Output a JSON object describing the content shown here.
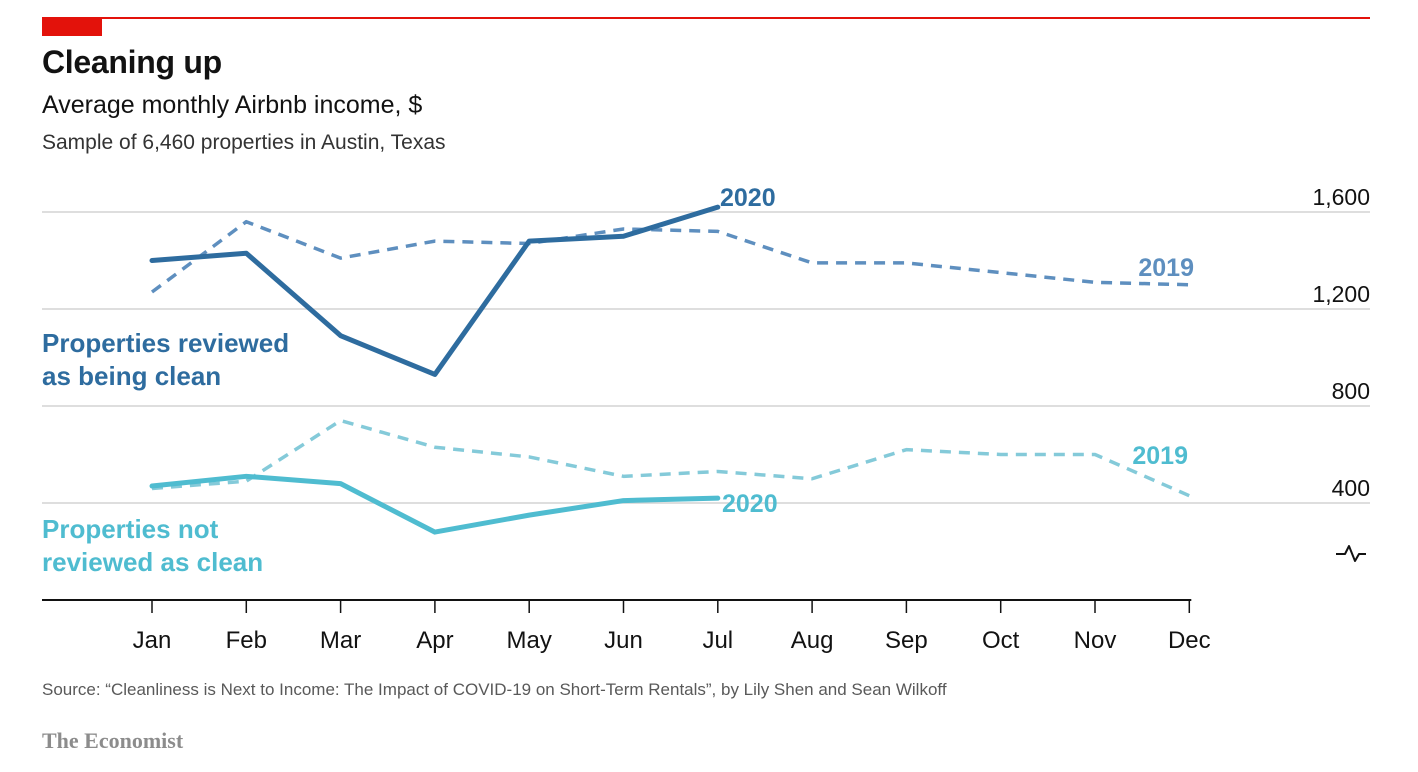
{
  "header": {
    "title": "Cleaning up",
    "subtitle": "Average monthly Airbnb income, $",
    "note": "Sample of 6,460 properties in Austin, Texas"
  },
  "footer": {
    "source": "Source: “Cleanliness is Next to Income: The Impact of COVID-19 on Short-Term Rentals”, by Lily Shen and Sean Wilkoff",
    "brand": "The Economist"
  },
  "colors": {
    "accent_red": "#e3120b",
    "dark_blue": "#2e6c9f",
    "dark_blue_dashed": "#5e8fbf",
    "light_blue": "#4fbcd0",
    "light_blue_dashed": "#84cad9",
    "grid": "#d4d4d4",
    "axis": "#121212"
  },
  "chart_data": {
    "type": "line",
    "categories": [
      "Jan",
      "Feb",
      "Mar",
      "Apr",
      "May",
      "Jun",
      "Jul",
      "Aug",
      "Sep",
      "Oct",
      "Nov",
      "Dec"
    ],
    "ylim": [
      0,
      1600
    ],
    "yticks": [
      400,
      800,
      1200,
      1600
    ],
    "ytick_labels": [
      "400",
      "800",
      "1,200",
      "1,600"
    ],
    "grid": true,
    "groups": [
      {
        "label": "Properties reviewed as being clean",
        "label_lines": [
          "Properties reviewed",
          "as being clean"
        ],
        "series": [
          {
            "name": "2020",
            "style": "solid",
            "values": [
              1400,
              1430,
              1090,
              930,
              1480,
              1500,
              1620
            ]
          },
          {
            "name": "2019",
            "style": "dashed",
            "values": [
              1270,
              1560,
              1410,
              1480,
              1470,
              1530,
              1520,
              1390,
              1390,
              1350,
              1310,
              1300
            ]
          }
        ]
      },
      {
        "label": "Properties not reviewed as clean",
        "label_lines": [
          "Properties not",
          "reviewed as clean"
        ],
        "series": [
          {
            "name": "2020",
            "style": "solid",
            "values": [
              470,
              510,
              480,
              280,
              350,
              410,
              420
            ]
          },
          {
            "name": "2019",
            "style": "dashed",
            "values": [
              460,
              490,
              740,
              630,
              590,
              510,
              530,
              500,
              620,
              600,
              600,
              430
            ]
          }
        ]
      }
    ]
  }
}
